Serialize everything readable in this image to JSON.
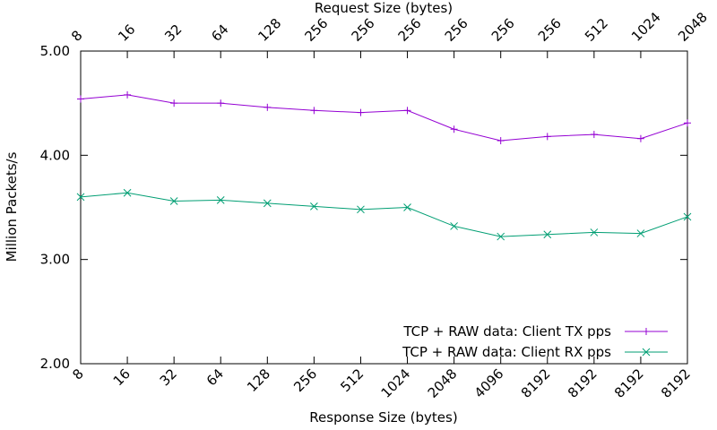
{
  "chart_data": {
    "type": "line",
    "ylabel": "Million Packets/s",
    "xlabel": "Response Size (bytes)",
    "x2label": "Request Size (bytes)",
    "ylim": [
      2.0,
      5.0
    ],
    "yticks": [
      "2.00",
      "3.00",
      "4.00",
      "5.00"
    ],
    "categories": [
      "8",
      "16",
      "32",
      "64",
      "128",
      "256",
      "512",
      "1024",
      "2048",
      "4096",
      "8192",
      "8192",
      "8192",
      "8192"
    ],
    "top_categories": [
      "8",
      "16",
      "32",
      "64",
      "128",
      "256",
      "256",
      "256",
      "256",
      "256",
      "256",
      "512",
      "1024",
      "2048"
    ],
    "series": [
      {
        "name": "TCP + RAW data: Client TX pps",
        "color": "#9400d3",
        "marker": "plus",
        "values": [
          4.54,
          4.58,
          4.5,
          4.5,
          4.46,
          4.43,
          4.41,
          4.43,
          4.25,
          4.14,
          4.18,
          4.2,
          4.16,
          4.31
        ]
      },
      {
        "name": "TCP + RAW data: Client RX pps",
        "color": "#009e73",
        "marker": "cross",
        "values": [
          3.6,
          3.64,
          3.56,
          3.57,
          3.54,
          3.51,
          3.48,
          3.5,
          3.32,
          3.22,
          3.24,
          3.26,
          3.25,
          3.41
        ]
      }
    ],
    "legend_position": "bottom-right",
    "grid": false
  }
}
